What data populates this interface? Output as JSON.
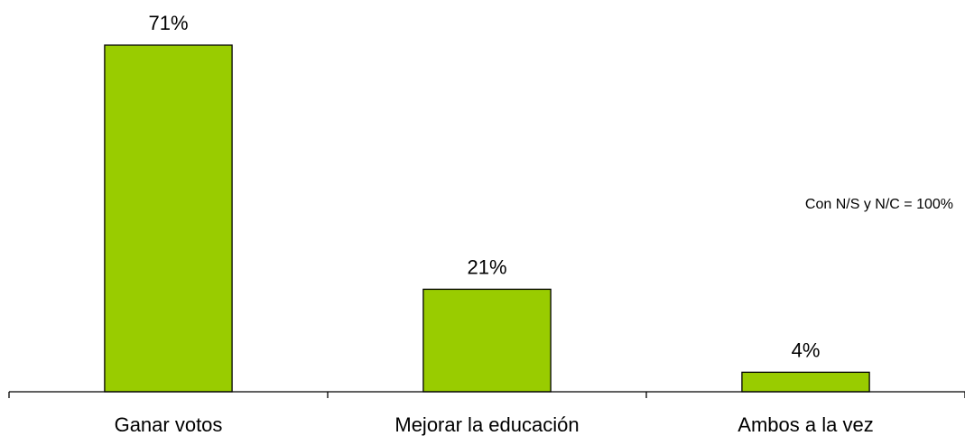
{
  "chart_data": {
    "type": "bar",
    "categories": [
      "Ganar votos",
      "Mejorar la educación",
      "Ambos a la vez"
    ],
    "values": [
      71,
      21,
      4
    ],
    "data_labels": [
      "71%",
      "21%",
      "4%"
    ],
    "ylim": [
      0,
      71
    ],
    "grid": false,
    "note": "Con N/S y N/C = 100%",
    "colors": {
      "bar": "#99cc00",
      "outline": "#000000",
      "axis": "#000000",
      "text": "#000000",
      "background": "#ffffff"
    }
  }
}
